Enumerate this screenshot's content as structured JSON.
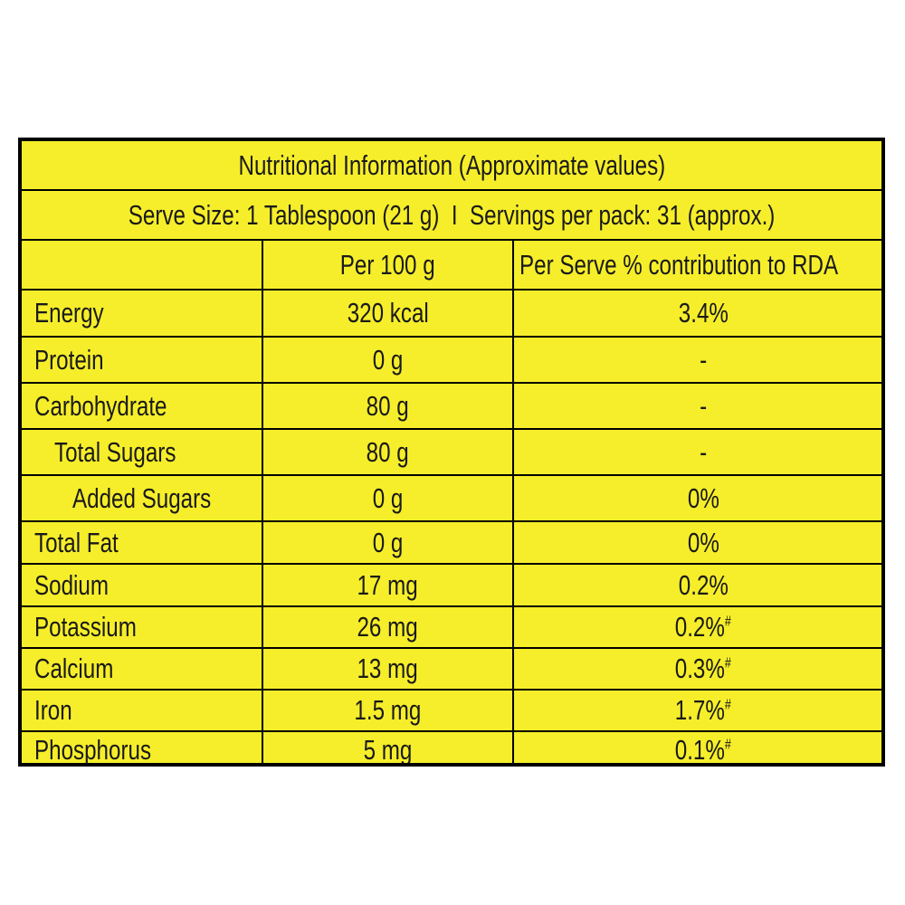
{
  "title": "Nutritional Information (Approximate values)",
  "serve_info": "Serve Size: 1 Tablespoon (21 g)  I  Servings per pack: 31 (approx.)",
  "headers": {
    "nutrient": "",
    "per_100g": "Per 100 g",
    "per_serve": "Per Serve % contribution to RDA"
  },
  "rows": [
    {
      "name": "Energy",
      "per_100g": "320 kcal",
      "rda": "3.4%",
      "mark": ""
    },
    {
      "name": "Protein",
      "per_100g": "0 g",
      "rda": "-",
      "mark": ""
    },
    {
      "name": "Carbohydrate",
      "per_100g": "80 g",
      "rda": "-",
      "mark": ""
    },
    {
      "name": "Total Sugars",
      "per_100g": "80 g",
      "rda": "-",
      "mark": ""
    },
    {
      "name": "Added Sugars",
      "per_100g": "0 g",
      "rda": "0%",
      "mark": ""
    },
    {
      "name": "Total Fat",
      "per_100g": "0 g",
      "rda": "0%",
      "mark": ""
    },
    {
      "name": "Sodium",
      "per_100g": "17 mg",
      "rda": "0.2%",
      "mark": ""
    },
    {
      "name": "Potassium",
      "per_100g": "26 mg",
      "rda": "0.2%",
      "mark": "#"
    },
    {
      "name": "Calcium",
      "per_100g": "13 mg",
      "rda": "0.3%",
      "mark": "#"
    },
    {
      "name": "Iron",
      "per_100g": "1.5 mg",
      "rda": "1.7%",
      "mark": "#"
    },
    {
      "name": "Phosphorus",
      "per_100g": "5 mg",
      "rda": "0.1%",
      "mark": "#"
    }
  ],
  "colors": {
    "background": "#f6ee2a",
    "border": "#000000",
    "text": "#1a1a1a"
  }
}
